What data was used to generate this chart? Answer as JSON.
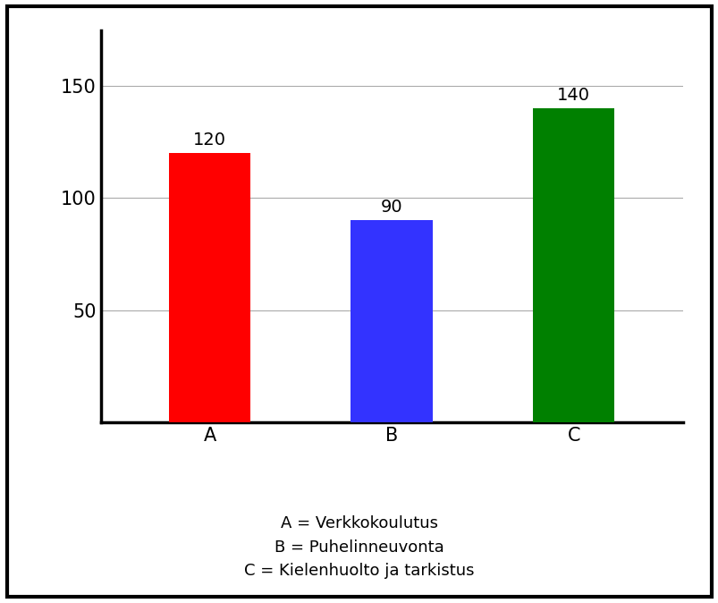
{
  "categories": [
    "A",
    "B",
    "C"
  ],
  "values": [
    120,
    90,
    140
  ],
  "bar_colors": [
    "#ff0000",
    "#3333ff",
    "#008000"
  ],
  "bar_width": 0.45,
  "ylim": [
    0,
    175
  ],
  "yticks": [
    50,
    100,
    150
  ],
  "legend_lines": [
    "A = Verkkokoulutus",
    "B = Puhelinneuvonta",
    "C = Kielenhuolto ja tarkistus"
  ],
  "label_fontsize": 15,
  "tick_fontsize": 15,
  "value_fontsize": 14,
  "legend_fontsize": 13,
  "background_color": "#ffffff",
  "grid_color": "#aaaaaa",
  "border_color": "#000000",
  "frame_linewidth": 3.0
}
